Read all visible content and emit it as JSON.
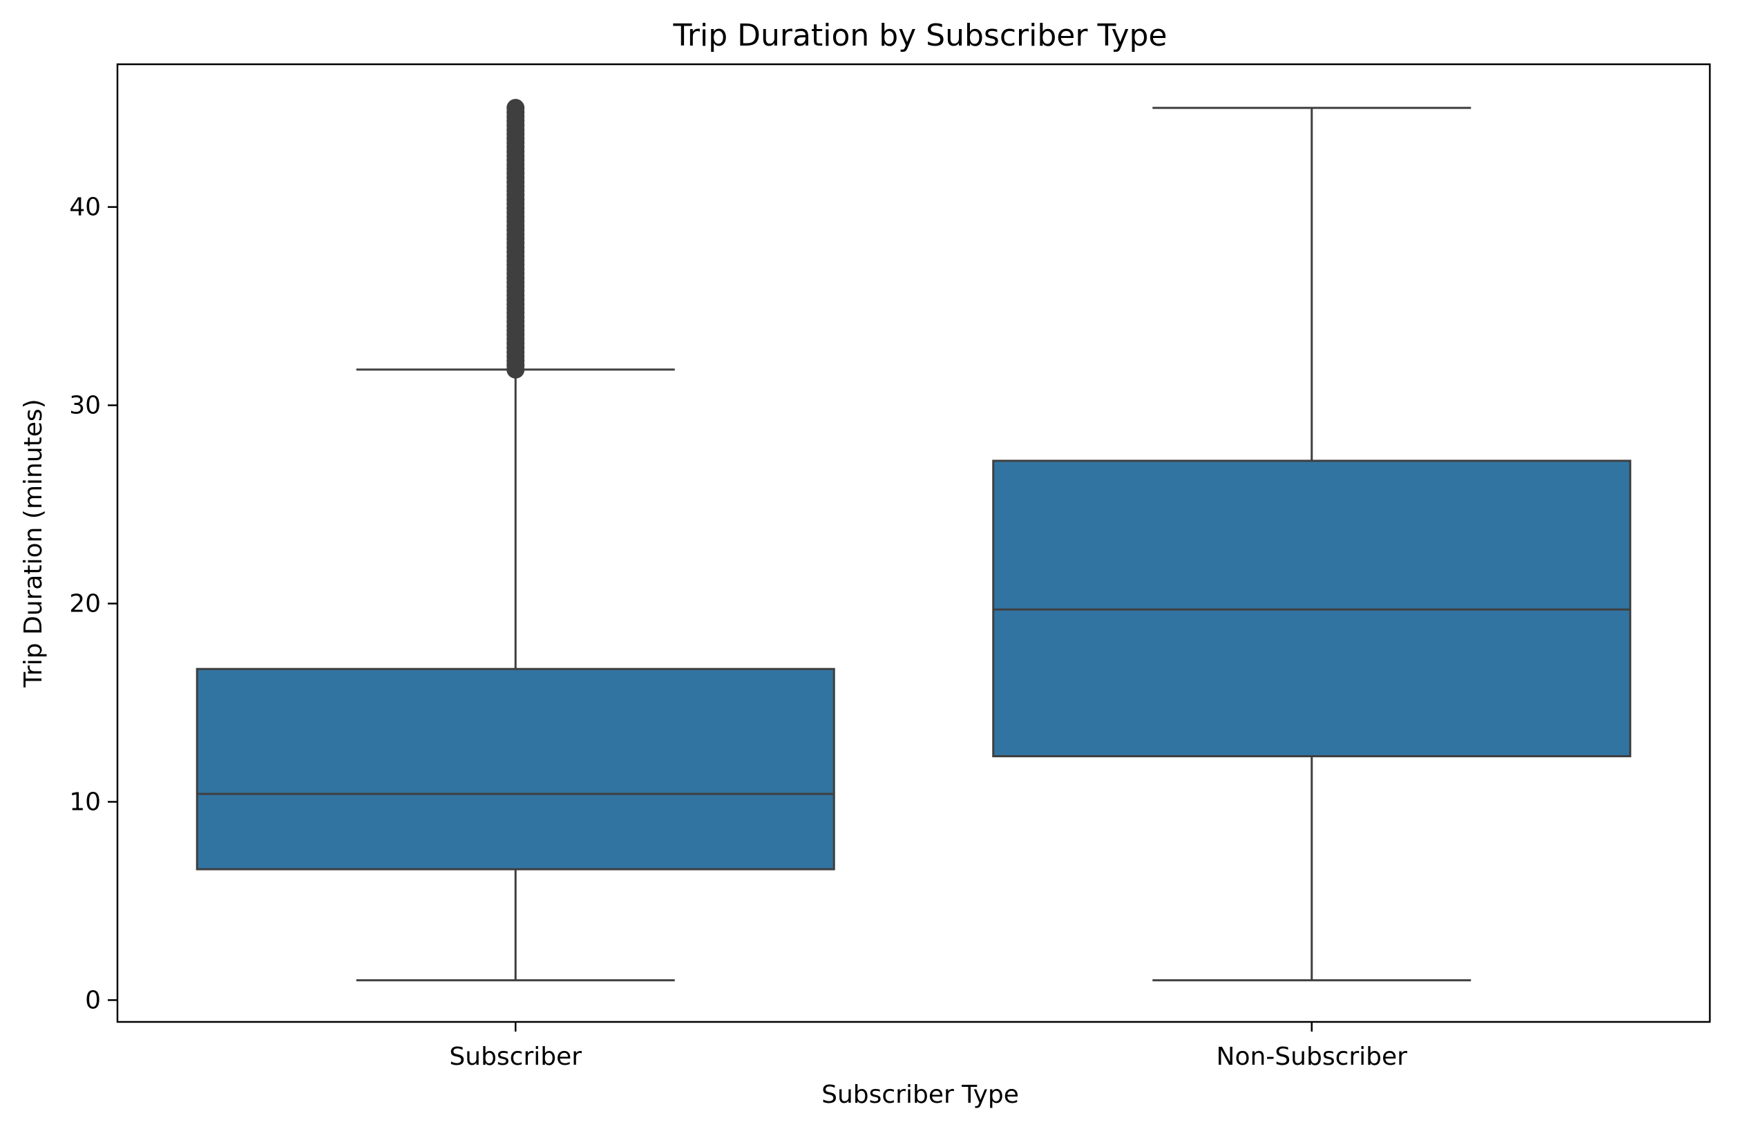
{
  "chart_data": {
    "type": "box",
    "title": "Trip Duration by Subscriber Type",
    "xlabel": "Subscriber Type",
    "ylabel": "Trip Duration (minutes)",
    "ylim": [
      -1.1,
      47.2
    ],
    "yticks": [
      0,
      10,
      20,
      30,
      40
    ],
    "categories": [
      "Subscriber",
      "Non-Subscriber"
    ],
    "boxes": [
      {
        "category": "Subscriber",
        "min": 1.0,
        "q1": 6.6,
        "median": 10.4,
        "q3": 16.7,
        "max": 31.8,
        "outlier_range": [
          31.8,
          45.0
        ]
      },
      {
        "category": "Non-Subscriber",
        "min": 1.0,
        "q1": 12.3,
        "median": 19.7,
        "q3": 27.2,
        "max": 45.0,
        "outlier_range": null
      }
    ],
    "box_color": "#3274a1",
    "line_color": "#3f3f3f",
    "grid": false,
    "legend": "none"
  }
}
